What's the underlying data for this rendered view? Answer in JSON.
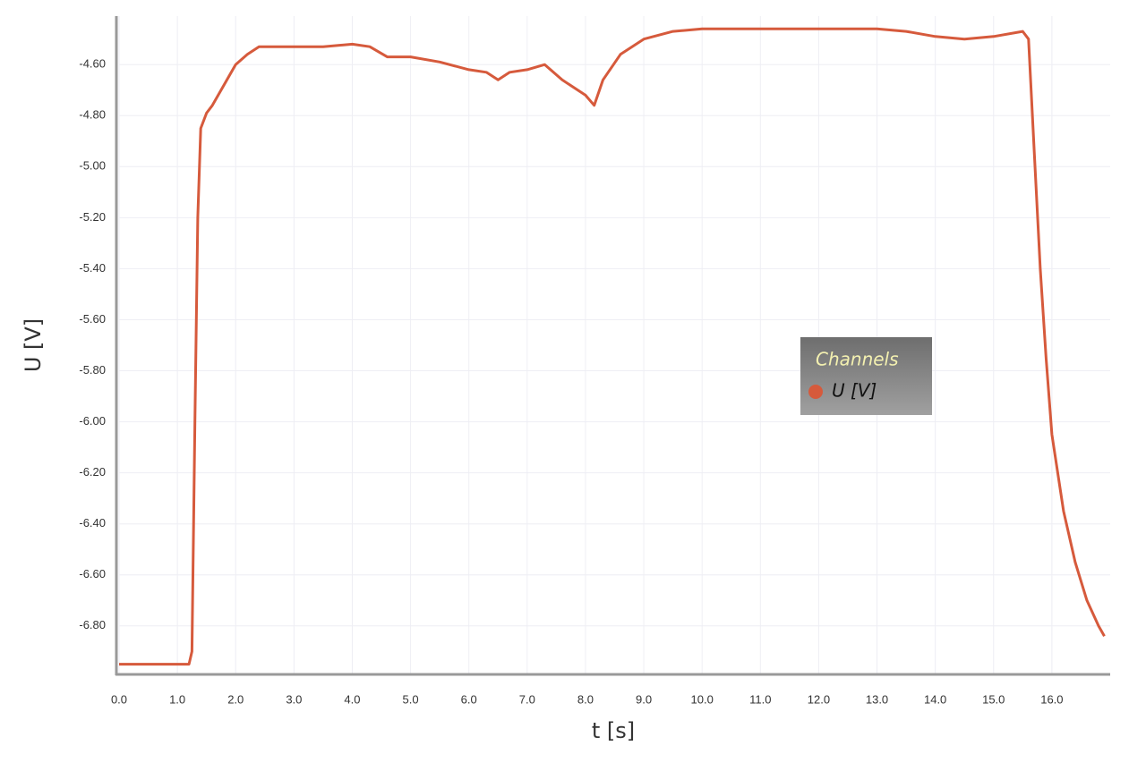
{
  "chart_data": {
    "type": "line",
    "x_label": "t [s]",
    "y_label": "U [V]",
    "legend_title": "Channels",
    "legend": "center-right",
    "grid": true,
    "x": [
      0.0,
      0.5,
      1.0,
      1.2,
      1.25,
      1.3,
      1.35,
      1.4,
      1.5,
      1.6,
      1.8,
      2.0,
      2.2,
      2.4,
      2.6,
      3.0,
      3.5,
      4.0,
      4.3,
      4.6,
      5.0,
      5.5,
      6.0,
      6.3,
      6.5,
      6.7,
      7.0,
      7.3,
      7.6,
      8.0,
      8.15,
      8.3,
      8.6,
      9.0,
      9.5,
      10.0,
      11.0,
      12.0,
      13.0,
      13.5,
      14.0,
      14.5,
      15.0,
      15.5,
      15.6,
      15.7,
      15.8,
      15.9,
      16.0,
      16.2,
      16.4,
      16.6,
      16.8,
      16.9
    ],
    "series": [
      {
        "name": "U [V]",
        "color": "#d65a3c",
        "values": [
          -6.95,
          -6.95,
          -6.95,
          -6.95,
          -6.9,
          -6.0,
          -5.2,
          -4.85,
          -4.79,
          -4.76,
          -4.68,
          -4.6,
          -4.56,
          -4.53,
          -4.53,
          -4.53,
          -4.53,
          -4.52,
          -4.53,
          -4.57,
          -4.57,
          -4.59,
          -4.62,
          -4.63,
          -4.66,
          -4.63,
          -4.62,
          -4.6,
          -4.66,
          -4.72,
          -4.76,
          -4.66,
          -4.56,
          -4.5,
          -4.47,
          -4.46,
          -4.46,
          -4.46,
          -4.46,
          -4.47,
          -4.49,
          -4.5,
          -4.49,
          -4.47,
          -4.5,
          -4.95,
          -5.4,
          -5.75,
          -6.05,
          -6.35,
          -6.55,
          -6.7,
          -6.8,
          -6.84
        ]
      }
    ],
    "xlim": [
      0,
      17
    ],
    "ylim": [
      -6.99,
      -4.41
    ],
    "xticks": [
      {
        "value": 0,
        "label": "0.0"
      },
      {
        "value": 1,
        "label": "1.0"
      },
      {
        "value": 2,
        "label": "2.0"
      },
      {
        "value": 3,
        "label": "3.0"
      },
      {
        "value": 4,
        "label": "4.0"
      },
      {
        "value": 5,
        "label": "5.0"
      },
      {
        "value": 6,
        "label": "6.0"
      },
      {
        "value": 7,
        "label": "7.0"
      },
      {
        "value": 8,
        "label": "8.0"
      },
      {
        "value": 9,
        "label": "9.0"
      },
      {
        "value": 10,
        "label": "10.0"
      },
      {
        "value": 11,
        "label": "11.0"
      },
      {
        "value": 12,
        "label": "12.0"
      },
      {
        "value": 13,
        "label": "13.0"
      },
      {
        "value": 14,
        "label": "14.0"
      },
      {
        "value": 15,
        "label": "15.0"
      },
      {
        "value": 16,
        "label": "16.0"
      }
    ],
    "yticks": [
      {
        "value": -4.6,
        "label": "-4.60"
      },
      {
        "value": -4.8,
        "label": "-4.80"
      },
      {
        "value": -5.0,
        "label": "-5.00"
      },
      {
        "value": -5.2,
        "label": "-5.20"
      },
      {
        "value": -5.4,
        "label": "-5.40"
      },
      {
        "value": -5.6,
        "label": "-5.60"
      },
      {
        "value": -5.8,
        "label": "-5.80"
      },
      {
        "value": -6.0,
        "label": "-6.00"
      },
      {
        "value": -6.2,
        "label": "-6.20"
      },
      {
        "value": -6.4,
        "label": "-6.40"
      },
      {
        "value": -6.6,
        "label": "-6.60"
      },
      {
        "value": -6.8,
        "label": "-6.80"
      }
    ]
  }
}
